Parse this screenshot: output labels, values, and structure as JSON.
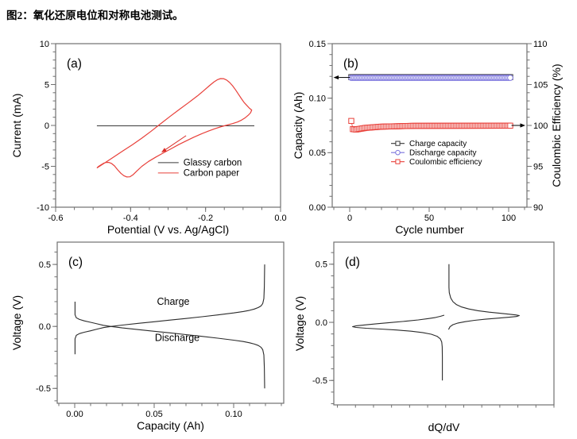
{
  "figure_title": "图2：氧化还原电位和对称电池测试。",
  "colors": {
    "curve_red": "#e8403a",
    "curve_blue": "#7b74dd",
    "curve_black": "#3a3a3a",
    "frame_gray": "#707070",
    "arrow_red": "#d92b25",
    "text_black": "#000000"
  },
  "chart_data": [
    {
      "id": "a",
      "type": "line",
      "panel_label": "(a)",
      "xlabel": "Potential (V vs. Ag/AgCl)",
      "ylabel": "Current (mA)",
      "xlim": [
        -0.6,
        0.0
      ],
      "ylim": [
        -10,
        10
      ],
      "xticks": [
        -0.6,
        -0.4,
        -0.2,
        0.0
      ],
      "xtick_labels": [
        "-0.6",
        "-0.4",
        "-0.2",
        "0.0"
      ],
      "xminor": 0.05,
      "yticks": [
        -10,
        -5,
        0,
        5,
        10
      ],
      "ytick_labels": [
        "-10",
        "-5",
        "0",
        "5",
        "10"
      ],
      "yminor": 1,
      "series": [
        {
          "name": "Glassy carbon",
          "color": "#3a3a3a",
          "width": 1,
          "points": [
            [
              -0.49,
              -0.05
            ],
            [
              -0.07,
              -0.05
            ]
          ]
        },
        {
          "name": "Carbon paper",
          "color": "#e8403a",
          "width": 1.2,
          "points": [
            [
              -0.49,
              -5.2
            ],
            [
              -0.468,
              -4.55
            ],
            [
              -0.445,
              -3.85
            ],
            [
              -0.42,
              -3.1
            ],
            [
              -0.395,
              -2.35
            ],
            [
              -0.37,
              -1.55
            ],
            [
              -0.345,
              -0.7
            ],
            [
              -0.32,
              0.2
            ],
            [
              -0.295,
              1.1
            ],
            [
              -0.27,
              1.95
            ],
            [
              -0.245,
              2.8
            ],
            [
              -0.222,
              3.6
            ],
            [
              -0.205,
              4.25
            ],
            [
              -0.19,
              4.85
            ],
            [
              -0.178,
              5.3
            ],
            [
              -0.168,
              5.6
            ],
            [
              -0.16,
              5.73
            ],
            [
              -0.152,
              5.72
            ],
            [
              -0.144,
              5.55
            ],
            [
              -0.136,
              5.25
            ],
            [
              -0.128,
              4.85
            ],
            [
              -0.12,
              4.35
            ],
            [
              -0.112,
              3.8
            ],
            [
              -0.104,
              3.25
            ],
            [
              -0.097,
              2.8
            ],
            [
              -0.09,
              2.45
            ],
            [
              -0.083,
              2.1
            ],
            [
              -0.077,
              1.88
            ],
            [
              -0.08,
              1.55
            ],
            [
              -0.086,
              1.25
            ],
            [
              -0.094,
              0.95
            ],
            [
              -0.104,
              0.65
            ],
            [
              -0.115,
              0.42
            ],
            [
              -0.128,
              0.22
            ],
            [
              -0.142,
              0.05
            ],
            [
              -0.158,
              -0.15
            ],
            [
              -0.175,
              -0.4
            ],
            [
              -0.193,
              -0.7
            ],
            [
              -0.212,
              -1.05
            ],
            [
              -0.232,
              -1.45
            ],
            [
              -0.252,
              -1.9
            ],
            [
              -0.272,
              -2.35
            ],
            [
              -0.292,
              -2.85
            ],
            [
              -0.312,
              -3.35
            ],
            [
              -0.332,
              -3.85
            ],
            [
              -0.352,
              -4.4
            ],
            [
              -0.37,
              -5.0
            ],
            [
              -0.384,
              -5.6
            ],
            [
              -0.394,
              -6.05
            ],
            [
              -0.402,
              -6.28
            ],
            [
              -0.41,
              -6.3
            ],
            [
              -0.418,
              -6.15
            ],
            [
              -0.426,
              -5.85
            ],
            [
              -0.435,
              -5.4
            ],
            [
              -0.443,
              -4.95
            ],
            [
              -0.451,
              -4.65
            ],
            [
              -0.458,
              -4.52
            ],
            [
              -0.465,
              -4.52
            ],
            [
              -0.472,
              -4.62
            ],
            [
              -0.479,
              -4.82
            ],
            [
              -0.485,
              -5.0
            ],
            [
              -0.49,
              -5.2
            ]
          ]
        }
      ],
      "legend": {
        "x": -0.327,
        "y": -4.55,
        "dy": 13,
        "line_len": 26,
        "font": 11.5,
        "entries": [
          {
            "color": "#3a3a3a",
            "label": "Glassy carbon"
          },
          {
            "color": "#e8403a",
            "label": "Carbon paper"
          }
        ]
      },
      "arrows": [
        {
          "from": [
            -0.252,
            -1.25
          ],
          "to": [
            -0.318,
            -3.3
          ],
          "color": "#d92b25"
        }
      ]
    },
    {
      "id": "b",
      "type": "scatter",
      "panel_label": "(b)",
      "xlabel": "Cycle number",
      "ylabel": "Capacity (Ah)",
      "y2label": "Coulombic Efficiency (%)",
      "xlim": [
        -11,
        111.5
      ],
      "ylim": [
        0,
        0.15
      ],
      "y2lim": [
        90,
        110
      ],
      "xticks": [
        0,
        50,
        100
      ],
      "xtick_labels": [
        "0",
        "50",
        "100"
      ],
      "xminor": 10,
      "yticks": [
        0,
        0.05,
        0.1,
        0.15
      ],
      "ytick_labels": [
        "0.00",
        "0.05",
        "0.10",
        "0.15"
      ],
      "yminor": 0.01,
      "y2ticks": [
        90,
        95,
        100,
        105,
        110
      ],
      "y2tick_labels": [
        "90",
        "95",
        "100",
        "105",
        "110"
      ],
      "y2minor": 1,
      "series": [
        {
          "name": "Charge capacity",
          "color": "#3a3a3a",
          "width": 0.8,
          "marker": "square",
          "const": {
            "n": 101,
            "y": 0.1193
          }
        },
        {
          "name": "Discharge capacity",
          "color": "#7b74dd",
          "width": 0.8,
          "marker": "circle",
          "const": {
            "n": 101,
            "y": 0.1187
          }
        },
        {
          "name": "Coulombic efficiency",
          "color": "#e8403a",
          "width": 0.8,
          "marker": "square",
          "axis": "y2",
          "profile": [
            [
              1,
              100.55
            ],
            [
              2,
              99.55
            ],
            [
              4,
              99.5
            ],
            [
              10,
              99.7
            ],
            [
              20,
              99.85
            ],
            [
              40,
              99.95
            ],
            [
              101,
              99.97
            ]
          ]
        }
      ],
      "legend": {
        "x": 26,
        "y": 0.0585,
        "dy": 11.5,
        "line_len": 17,
        "font": 10,
        "entries": [
          {
            "color": "#3a3a3a",
            "marker": "square",
            "label": "Charge capacity"
          },
          {
            "color": "#7b74dd",
            "marker": "circle",
            "label": "Discharge capacity"
          },
          {
            "color": "#e8403a",
            "marker": "square",
            "label": "Coulombic efficiency"
          }
        ]
      },
      "arrows": [
        {
          "from": [
            0.2,
            0.119
          ],
          "to": [
            -10.2,
            0.119
          ],
          "color": "#000000"
        },
        {
          "from": [
            101.8,
            100
          ],
          "to": [
            110.5,
            100
          ],
          "color": "#000000",
          "axis": "y2"
        }
      ]
    },
    {
      "id": "c",
      "type": "line",
      "panel_label": "(c)",
      "xlabel": "Capacity (Ah)",
      "ylabel": "Voltage (V)",
      "xlim": [
        -0.011,
        0.1315
      ],
      "ylim": [
        -0.62,
        0.68
      ],
      "xticks": [
        0,
        0.05,
        0.1
      ],
      "xtick_labels": [
        "0.00",
        "0.05",
        "0.10"
      ],
      "xminor": 0.01,
      "yticks": [
        -0.5,
        0,
        0.5
      ],
      "ytick_labels": [
        "-0.5",
        "0.0",
        "0.5"
      ],
      "yminor": 0.1,
      "series": [
        {
          "name": "Charge",
          "color": "#2b2b2b",
          "width": 1.1,
          "points": [
            [
              0.0002,
              -0.225
            ],
            [
              0.0002,
              -0.1
            ],
            [
              0.001,
              -0.072
            ],
            [
              0.003,
              -0.058
            ],
            [
              0.006,
              -0.047
            ],
            [
              0.01,
              -0.035
            ],
            [
              0.014,
              -0.022
            ],
            [
              0.018,
              -0.01
            ],
            [
              0.023,
              0.0
            ],
            [
              0.03,
              0.011
            ],
            [
              0.04,
              0.025
            ],
            [
              0.05,
              0.038
            ],
            [
              0.06,
              0.051
            ],
            [
              0.07,
              0.064
            ],
            [
              0.08,
              0.078
            ],
            [
              0.09,
              0.093
            ],
            [
              0.1,
              0.109
            ],
            [
              0.106,
              0.12
            ],
            [
              0.11,
              0.13
            ],
            [
              0.113,
              0.14
            ],
            [
              0.1155,
              0.152
            ],
            [
              0.1172,
              0.165
            ],
            [
              0.1183,
              0.185
            ],
            [
              0.119,
              0.225
            ],
            [
              0.1193,
              0.32
            ],
            [
              0.1195,
              0.5
            ]
          ]
        },
        {
          "name": "Discharge",
          "color": "#2b2b2b",
          "width": 1.1,
          "points": [
            [
              0.0002,
              0.2
            ],
            [
              0.0002,
              0.095
            ],
            [
              0.001,
              0.07
            ],
            [
              0.003,
              0.056
            ],
            [
              0.006,
              0.045
            ],
            [
              0.01,
              0.033
            ],
            [
              0.014,
              0.021
            ],
            [
              0.018,
              0.009
            ],
            [
              0.023,
              -0.001
            ],
            [
              0.03,
              -0.012
            ],
            [
              0.04,
              -0.026
            ],
            [
              0.05,
              -0.039
            ],
            [
              0.06,
              -0.052
            ],
            [
              0.07,
              -0.066
            ],
            [
              0.08,
              -0.08
            ],
            [
              0.09,
              -0.095
            ],
            [
              0.1,
              -0.111
            ],
            [
              0.106,
              -0.122
            ],
            [
              0.11,
              -0.132
            ],
            [
              0.113,
              -0.142
            ],
            [
              0.1155,
              -0.154
            ],
            [
              0.1172,
              -0.168
            ],
            [
              0.1183,
              -0.188
            ],
            [
              0.119,
              -0.23
            ],
            [
              0.1193,
              -0.33
            ],
            [
              0.1195,
              -0.5
            ]
          ]
        }
      ],
      "texts": [
        {
          "x": 0.062,
          "y": 0.175,
          "text": "Charge",
          "size": 12.5
        },
        {
          "x": 0.0645,
          "y": -0.118,
          "text": "Discharge",
          "size": 12.5
        }
      ]
    },
    {
      "id": "d",
      "type": "line",
      "panel_label": "(d)",
      "xlabel": "dQ/dV",
      "ylabel": "Voltage (V)",
      "xlim": [
        -1.55,
        1.5
      ],
      "ylim": [
        -0.71,
        0.69
      ],
      "xticks": [],
      "xtick_labels": [],
      "xminor": 0.25,
      "yticks": [
        -0.5,
        0,
        0.5
      ],
      "ytick_labels": [
        "-0.5",
        "0.0",
        "0.5"
      ],
      "yminor": 0.1,
      "series": [
        {
          "name": "charge branch",
          "color": "#2b2b2b",
          "width": 1.1,
          "points": [
            [
              0.045,
              0.5
            ],
            [
              0.045,
              0.3
            ],
            [
              0.05,
              0.255
            ],
            [
              0.07,
              0.21
            ],
            [
              0.1,
              0.178
            ],
            [
              0.15,
              0.152
            ],
            [
              0.22,
              0.132
            ],
            [
              0.32,
              0.115
            ],
            [
              0.45,
              0.1
            ],
            [
              0.6,
              0.088
            ],
            [
              0.75,
              0.078
            ],
            [
              0.88,
              0.07
            ],
            [
              0.97,
              0.064
            ],
            [
              1.02,
              0.058
            ],
            [
              0.98,
              0.05
            ],
            [
              0.88,
              0.044
            ],
            [
              0.72,
              0.036
            ],
            [
              0.55,
              0.027
            ],
            [
              0.4,
              0.017
            ],
            [
              0.27,
              0.006
            ],
            [
              0.17,
              -0.006
            ],
            [
              0.1,
              -0.02
            ],
            [
              0.06,
              -0.038
            ],
            [
              0.045,
              -0.055
            ],
            [
              0.04,
              -0.062
            ]
          ]
        },
        {
          "name": "discharge branch",
          "color": "#2b2b2b",
          "width": 1.1,
          "points": [
            [
              -0.02,
              0.062
            ],
            [
              -0.07,
              0.052
            ],
            [
              -0.14,
              0.042
            ],
            [
              -0.24,
              0.032
            ],
            [
              -0.38,
              0.021
            ],
            [
              -0.55,
              0.01
            ],
            [
              -0.75,
              -0.001
            ],
            [
              -0.95,
              -0.012
            ],
            [
              -1.12,
              -0.022
            ],
            [
              -1.24,
              -0.03
            ],
            [
              -1.29,
              -0.037
            ],
            [
              -1.24,
              -0.044
            ],
            [
              -1.1,
              -0.051
            ],
            [
              -0.9,
              -0.058
            ],
            [
              -0.68,
              -0.066
            ],
            [
              -0.48,
              -0.076
            ],
            [
              -0.32,
              -0.088
            ],
            [
              -0.2,
              -0.102
            ],
            [
              -0.12,
              -0.12
            ],
            [
              -0.075,
              -0.142
            ],
            [
              -0.055,
              -0.17
            ],
            [
              -0.048,
              -0.21
            ],
            [
              -0.046,
              -0.3
            ],
            [
              -0.046,
              -0.5
            ]
          ]
        }
      ]
    }
  ]
}
